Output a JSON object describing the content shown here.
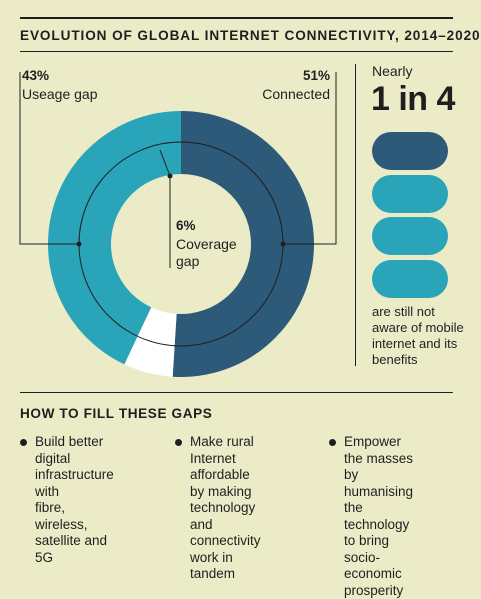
{
  "title": "EVOLUTION OF GLOBAL INTERNET CONNECTIVITY, 2014–2020",
  "colors": {
    "background": "#ecebc8",
    "connected": "#2d5a78",
    "usage_gap": "#2aa4b9",
    "coverage_gap": "#ffffff",
    "ink": "#1f1f1f"
  },
  "chart_data": {
    "type": "pie",
    "variant": "donut",
    "slices": [
      {
        "label": "Connected",
        "value": 51,
        "display": "51%"
      },
      {
        "label": "Coverage gap",
        "value": 6,
        "display": "6%"
      },
      {
        "label": "Useage gap",
        "value": 43,
        "display": "43%"
      }
    ]
  },
  "labels": {
    "usage_pct": "43%",
    "usage_text": "Useage gap",
    "connected_pct": "51%",
    "connected_text": "Connected",
    "coverage_pct": "6%",
    "coverage_line1": "Coverage",
    "coverage_line2": "gap"
  },
  "stat": {
    "prefix": "Nearly",
    "headline": "1 in 4",
    "icon": "pill-icon",
    "pills": [
      {
        "color": "#2d5a78"
      },
      {
        "color": "#2aa4b9"
      },
      {
        "color": "#2aa4b9"
      },
      {
        "color": "#2aa4b9"
      }
    ],
    "note_lines": [
      "are still not",
      "aware of mobile",
      "internet and its",
      "benefits"
    ]
  },
  "gaps": {
    "heading": "HOW TO FILL THESE GAPS",
    "items": [
      {
        "lines": [
          "Build better digital",
          "infrastructure with",
          "fibre, wireless,",
          "satellite and 5G"
        ]
      },
      {
        "lines": [
          "Make rural Internet",
          "affordable by making",
          "technology and",
          "connectivity work in",
          "tandem"
        ]
      },
      {
        "lines": [
          "Empower the masses",
          "by humanising the",
          "technology to bring",
          "socio-economic",
          "prosperity"
        ]
      }
    ]
  }
}
